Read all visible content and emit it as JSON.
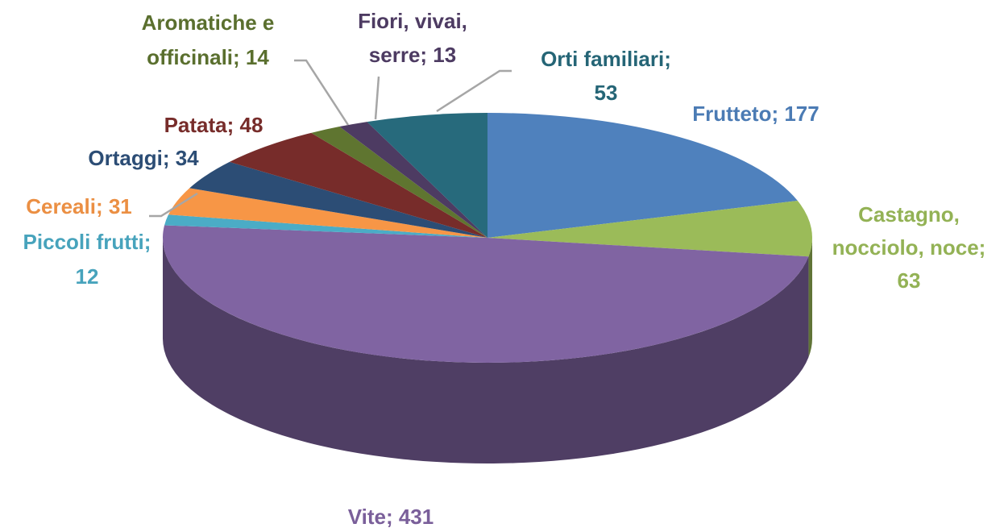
{
  "chart_data": {
    "type": "pie3d",
    "labels": [
      [
        "Frutteto;  177"
      ],
      [
        "Castagno,",
        "nocciolo, noce;",
        "63"
      ],
      [
        "Vite;  431"
      ],
      [
        "Piccoli frutti;",
        "12"
      ],
      [
        "Cereali;  31"
      ],
      [
        "Ortaggi;  34"
      ],
      [
        "Patata;  48"
      ],
      [
        "Aromatiche e",
        "officinali;  14"
      ],
      [
        "Fiori, vivai,",
        "serre;  13"
      ],
      [
        "Orti familiari;",
        "53"
      ]
    ],
    "values": [
      177,
      63,
      431,
      12,
      31,
      34,
      48,
      14,
      13,
      53
    ],
    "colors": [
      "#4f81bd",
      "#9bbb59",
      "#8064a2",
      "#4bacc6",
      "#f79646",
      "#2c4d75",
      "#772c2a",
      "#5f7530",
      "#4d3b62",
      "#276a7c"
    ]
  }
}
